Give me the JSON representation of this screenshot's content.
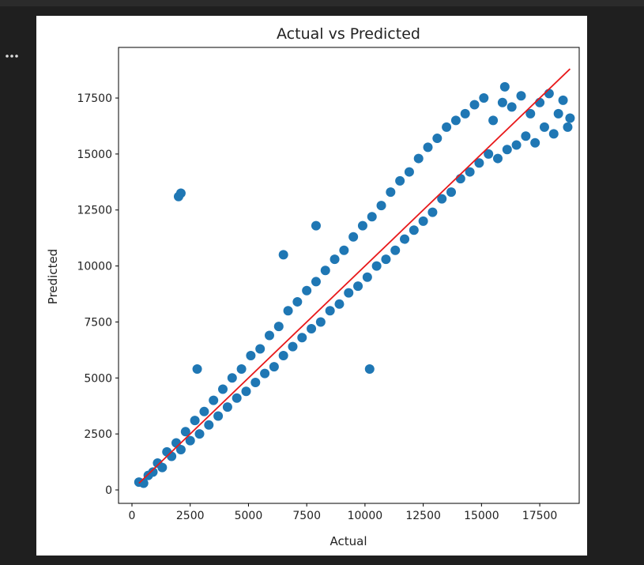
{
  "chart_data": {
    "type": "scatter",
    "title": "Actual vs Predicted",
    "xlabel": "Actual",
    "ylabel": "Predicted",
    "xlim": [
      -576,
      19193
    ],
    "ylim": [
      -600,
      19760
    ],
    "xticks": [
      0,
      2500,
      5000,
      7500,
      10000,
      12500,
      15000,
      17500
    ],
    "yticks": [
      0,
      2500,
      5000,
      7500,
      10000,
      12500,
      15000,
      17500
    ],
    "grid": false,
    "series": [
      {
        "type": "scatter",
        "color": "#1f77b4",
        "x": [
          300,
          500,
          700,
          900,
          1100,
          1300,
          1500,
          1700,
          1900,
          2100,
          2300,
          2500,
          2700,
          2900,
          3100,
          3300,
          3500,
          3700,
          3900,
          4100,
          4300,
          4500,
          4700,
          4900,
          5100,
          5300,
          5500,
          5700,
          5900,
          6100,
          6300,
          6500,
          6700,
          6900,
          7100,
          7300,
          7500,
          7700,
          7900,
          8100,
          8300,
          8500,
          8700,
          8900,
          9100,
          9300,
          9500,
          9700,
          9900,
          10100,
          10300,
          10500,
          10700,
          10900,
          11100,
          11300,
          11500,
          11700,
          11900,
          12100,
          12300,
          12500,
          12700,
          12900,
          13100,
          13300,
          13500,
          13700,
          13900,
          14100,
          14300,
          14500,
          14700,
          14900,
          15100,
          15300,
          15500,
          15700,
          15900,
          16100,
          16300,
          16500,
          16700,
          16900,
          17100,
          17300,
          17500,
          17700,
          17900,
          18100,
          18300,
          18500,
          18700,
          18800,
          2000,
          2100,
          10200,
          2800,
          6500,
          16000,
          7900
        ],
        "y": [
          350,
          300,
          650,
          800,
          1200,
          1000,
          1700,
          1500,
          2100,
          1800,
          2600,
          2200,
          3100,
          2500,
          3500,
          2900,
          4000,
          3300,
          4500,
          3700,
          5000,
          4100,
          5400,
          4400,
          6000,
          4800,
          6300,
          5200,
          6900,
          5500,
          7300,
          6000,
          8000,
          6400,
          8400,
          6800,
          8900,
          7200,
          9300,
          7500,
          9800,
          8000,
          10300,
          8300,
          10700,
          8800,
          11300,
          9100,
          11800,
          9500,
          12200,
          10000,
          12700,
          10300,
          13300,
          10700,
          13800,
          11200,
          14200,
          11600,
          14800,
          12000,
          15300,
          12400,
          15700,
          13000,
          16200,
          13300,
          16500,
          13900,
          16800,
          14200,
          17200,
          14600,
          17500,
          15000,
          16500,
          14800,
          17300,
          15200,
          17100,
          15400,
          17600,
          15800,
          16800,
          15500,
          17300,
          16200,
          17700,
          15900,
          16800,
          17400,
          16200,
          16600,
          13100,
          13250,
          5400,
          5400,
          10500,
          18000,
          11800
        ]
      },
      {
        "type": "line",
        "color": "#e8191b",
        "x": [
          300,
          18800
        ],
        "y": [
          300,
          18800
        ]
      }
    ]
  }
}
